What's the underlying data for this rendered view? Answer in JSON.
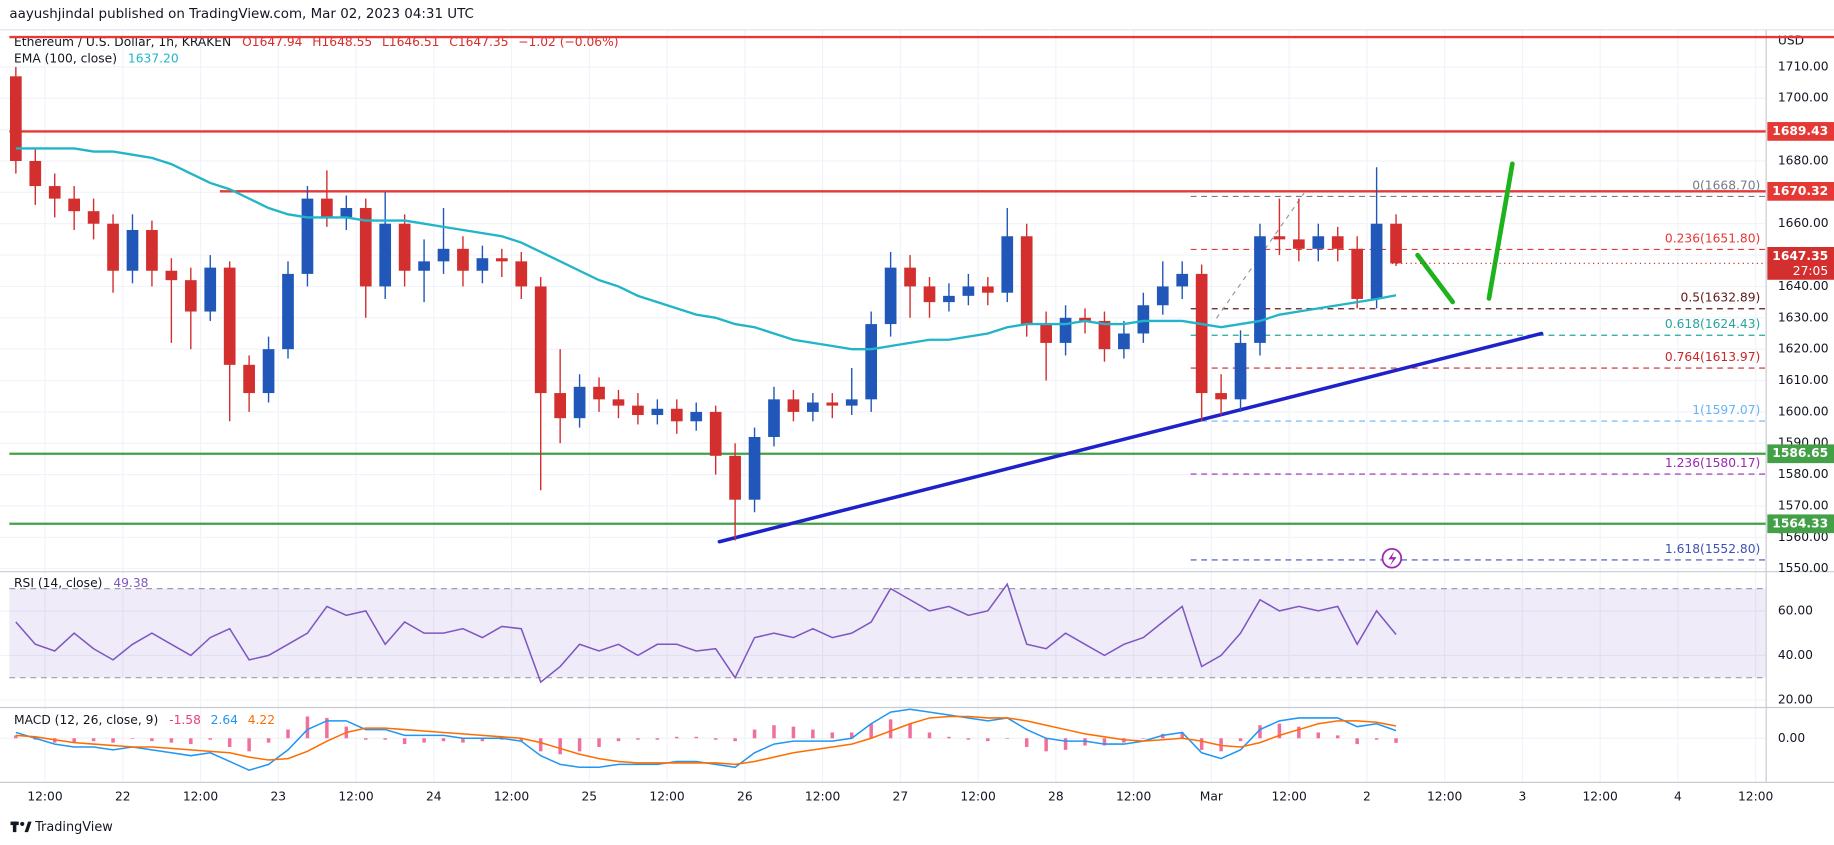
{
  "header": {
    "publisher": "aayushjindal published on TradingView.com, Mar 02, 2023 04:31 UTC",
    "symbol": "Ethereum / U.S. Dollar, 1h, KRAKEN",
    "ohlc": [
      "O1647.94",
      "H1648.55",
      "L1646.51",
      "C1647.35",
      "−1.02 (−0.06%)"
    ],
    "brand": "TradingView"
  },
  "chart_data": [
    {
      "type": "candlestick",
      "currency": "USD",
      "x_labels": [
        "12:00",
        "22",
        "12:00",
        "23",
        "12:00",
        "24",
        "12:00",
        "25",
        "12:00",
        "26",
        "12:00",
        "27",
        "12:00",
        "28",
        "12:00",
        "Mar",
        "12:00",
        "2",
        "12:00",
        "3",
        "12:00",
        "4",
        "12:00"
      ],
      "open": [
        1707,
        1680,
        1672,
        1668,
        1664,
        1660,
        1645,
        1658,
        1645,
        1642,
        1632,
        1646,
        1615,
        1606,
        1620,
        1644,
        1668,
        1662,
        1665,
        1640,
        1660,
        1645,
        1648,
        1652,
        1645,
        1649,
        1648,
        1640,
        1606,
        1598,
        1608,
        1604,
        1602,
        1599,
        1601,
        1597,
        1600,
        1586,
        1572,
        1592,
        1604,
        1600,
        1603,
        1602,
        1604,
        1628,
        1646,
        1640,
        1635,
        1637,
        1640,
        1638,
        1656,
        1628,
        1622,
        1630,
        1629,
        1620,
        1625,
        1634,
        1640,
        1644,
        1606,
        1604,
        1622,
        1656,
        1655,
        1652,
        1656,
        1652,
        1636,
        1660
      ],
      "high": [
        1710,
        1684,
        1676,
        1672,
        1668,
        1663,
        1663,
        1661,
        1649,
        1646,
        1650,
        1648,
        1618,
        1624,
        1648,
        1672,
        1677,
        1669,
        1668,
        1670,
        1663,
        1655,
        1665,
        1656,
        1653,
        1652,
        1651,
        1643,
        1620,
        1612,
        1611,
        1607,
        1606,
        1604,
        1604,
        1603,
        1602,
        1590,
        1595,
        1608,
        1607,
        1606,
        1606,
        1614,
        1632,
        1651,
        1650,
        1643,
        1641,
        1644,
        1643,
        1665,
        1660,
        1632,
        1634,
        1633,
        1632,
        1629,
        1638,
        1648,
        1648,
        1647,
        1612,
        1626,
        1660,
        1668,
        1668,
        1660,
        1659,
        1656,
        1678,
        1663
      ],
      "low": [
        1676,
        1666,
        1662,
        1658,
        1655,
        1638,
        1641,
        1640,
        1622,
        1620,
        1629,
        1597,
        1600,
        1603,
        1617,
        1640,
        1659,
        1658,
        1630,
        1636,
        1640,
        1635,
        1644,
        1640,
        1641,
        1643,
        1636,
        1575,
        1590,
        1595,
        1600,
        1598,
        1596,
        1596,
        1593,
        1594,
        1580,
        1559,
        1568,
        1589,
        1597,
        1597,
        1598,
        1599,
        1600,
        1624,
        1630,
        1630,
        1632,
        1634,
        1634,
        1635,
        1624,
        1610,
        1618,
        1625,
        1616,
        1617,
        1622,
        1631,
        1636,
        1597,
        1599,
        1600,
        1618,
        1650,
        1648,
        1648,
        1648,
        1633,
        1633,
        1646.51
      ],
      "close": [
        1680,
        1672,
        1668,
        1664,
        1660,
        1645,
        1658,
        1645,
        1642,
        1632,
        1646,
        1615,
        1606,
        1620,
        1644,
        1668,
        1662,
        1665,
        1640,
        1660,
        1645,
        1648,
        1652,
        1645,
        1649,
        1648,
        1640,
        1606,
        1598,
        1608,
        1604,
        1602,
        1599,
        1601,
        1597,
        1600,
        1586,
        1572,
        1592,
        1604,
        1600,
        1603,
        1602,
        1604,
        1628,
        1646,
        1640,
        1635,
        1637,
        1640,
        1638,
        1656,
        1628,
        1622,
        1630,
        1629,
        1620,
        1625,
        1634,
        1640,
        1644,
        1606,
        1604,
        1622,
        1656,
        1655,
        1652,
        1656,
        1652,
        1636,
        1660,
        1647.35
      ],
      "up_color": "#2157b8",
      "down_color": "#d32f2f",
      "countdown": "27:05",
      "ema": {
        "name": "EMA (100, close)",
        "color": "#22b5c8",
        "value_label": "1637.20",
        "values": [
          1684,
          1684,
          1684,
          1684,
          1683,
          1683,
          1682,
          1681,
          1679,
          1676,
          1673,
          1671,
          1668,
          1665,
          1663,
          1662,
          1662,
          1662,
          1661,
          1661,
          1661,
          1660,
          1659,
          1658,
          1657,
          1656,
          1654,
          1651,
          1648,
          1645,
          1642,
          1640,
          1637,
          1635,
          1633,
          1631,
          1630,
          1628,
          1627,
          1625,
          1623,
          1622,
          1621,
          1620,
          1620,
          1621,
          1622,
          1623,
          1623,
          1624,
          1625,
          1627,
          1628,
          1628,
          1628,
          1629,
          1628,
          1628,
          1629,
          1629,
          1629,
          1628,
          1627,
          1628,
          1629,
          1631,
          1632,
          1633,
          1634,
          1635,
          1636,
          1637.2
        ]
      },
      "unlabeled_levels": [
        {
          "value": 1719.5,
          "color": "#e53935"
        }
      ],
      "levels": [
        {
          "value": 1689.43,
          "color": "#e53935"
        },
        {
          "value": 1670.32,
          "color": "#e53935"
        },
        {
          "value": 1586.65,
          "color": "#43a047"
        },
        {
          "value": 1564.33,
          "color": "#43a047"
        }
      ],
      "fib": [
        {
          "value": 1668.7,
          "label": "0(1668.70)",
          "color": "#787b86"
        },
        {
          "value": 1651.8,
          "label": "0.236(1651.80)",
          "color": "#e53935"
        },
        {
          "value": 1632.89,
          "label": "0.5(1632.89)",
          "color": "#5d1a1a"
        },
        {
          "value": 1624.43,
          "label": "0.618(1624.43)",
          "color": "#26a69a"
        },
        {
          "value": 1613.97,
          "label": "0.764(1613.97)",
          "color": "#c62828"
        },
        {
          "value": 1597.07,
          "label": "1(1597.07)",
          "color": "#64b5f6"
        },
        {
          "value": 1580.17,
          "label": "1.236(1580.17)",
          "color": "#9c27b0"
        },
        {
          "value": 1552.8,
          "label": "1.618(1552.80)",
          "color": "#3f51b5"
        }
      ],
      "trendline": {
        "color": "#1e22c8",
        "values": [
          1558.6,
          1625
        ]
      },
      "ylim": [
        1549.6,
        1722
      ],
      "yticks": [
        {
          "value": 1550,
          "label": "1550.00"
        },
        {
          "value": 1560,
          "label": "1560.00"
        },
        {
          "value": 1570,
          "label": "1570.00"
        },
        {
          "value": 1580,
          "label": "1580.00"
        },
        {
          "value": 1590,
          "label": "1590.00"
        },
        {
          "value": 1600,
          "label": "1600.00"
        },
        {
          "value": 1610,
          "label": "1610.00"
        },
        {
          "value": 1620,
          "label": "1620.00"
        },
        {
          "value": 1630,
          "label": "1630.00"
        },
        {
          "value": 1640,
          "label": "1640.00"
        },
        {
          "value": 1650,
          "label": "1650.00"
        },
        {
          "value": 1660,
          "label": "1660.00"
        },
        {
          "value": 1670,
          "label": "1670.00"
        },
        {
          "value": 1680,
          "label": "1680.00"
        },
        {
          "value": 1690,
          "label": "1690.00"
        },
        {
          "value": 1700,
          "label": "1700.00"
        },
        {
          "value": 1710,
          "label": "1710.00"
        }
      ],
      "grid": true
    },
    {
      "type": "line",
      "series": [
        {
          "name": "RSI (14, close)",
          "color": "#7e57c2",
          "values": [
            55,
            45,
            42,
            50,
            43,
            38,
            45,
            50,
            45,
            40,
            48,
            52,
            38,
            40,
            45,
            50,
            62,
            58,
            60,
            45,
            55,
            50,
            50,
            52,
            48,
            53,
            52,
            28,
            35,
            45,
            42,
            45,
            40,
            45,
            45,
            42,
            43,
            30,
            48,
            50,
            48,
            52,
            48,
            50,
            55,
            70,
            65,
            60,
            62,
            58,
            60,
            72,
            45,
            43,
            50,
            45,
            40,
            45,
            48,
            55,
            62,
            35,
            40,
            50,
            65,
            60,
            62,
            60,
            62,
            45,
            60,
            49.38
          ]
        }
      ],
      "band": [
        30,
        70
      ],
      "band_color": "#7e57c2",
      "ylim": [
        17.4,
        76.8
      ],
      "yticks": [
        {
          "value": 20,
          "label": "20.00"
        },
        {
          "value": 40,
          "label": "40.00"
        },
        {
          "value": 60,
          "label": "60.00"
        }
      ]
    },
    {
      "type": "macd",
      "title": "MACD (12, 26, close, 9)",
      "histogram": {
        "color": "#ec407a",
        "values": [
          1,
          -0.5,
          -1.5,
          -1.5,
          -1,
          -1.5,
          0,
          -1,
          -1.5,
          -2,
          -0.5,
          -3,
          -4.5,
          -1.5,
          3,
          7.5,
          7,
          4,
          -0.5,
          -0.5,
          -2,
          -1.5,
          -1,
          -1.5,
          -1,
          -0.5,
          -1,
          -4.5,
          -5.5,
          -4.5,
          -3,
          -1,
          -0.5,
          -0.5,
          0.5,
          0.5,
          -0.5,
          -1,
          3,
          4.5,
          4,
          3,
          2,
          2,
          5,
          6.5,
          5,
          2,
          0.5,
          -0.5,
          -1,
          0,
          -3,
          -4.5,
          -4,
          -2.5,
          -2.5,
          -1.5,
          0,
          1.5,
          2,
          -4,
          -4.5,
          -1,
          4.5,
          5,
          4,
          2,
          1,
          -2,
          -0.5,
          -1.58
        ]
      },
      "series": [
        {
          "color": "#2196f3",
          "values": [
            2,
            0,
            -2,
            -3,
            -3,
            -4,
            -3,
            -4,
            -5,
            -6,
            -5,
            -8,
            -11,
            -9,
            -4,
            3,
            6,
            6,
            3,
            3,
            1,
            1,
            1,
            0,
            0,
            0,
            -1,
            -6,
            -9,
            -10,
            -10,
            -9,
            -9,
            -9,
            -8,
            -8,
            -9,
            -10,
            -5,
            -2,
            -1,
            -1,
            -1,
            0,
            5,
            9,
            10,
            9,
            8,
            7,
            6,
            7,
            3,
            0,
            -1,
            -1,
            -2,
            -2,
            -1,
            1,
            2,
            -5,
            -7,
            -4,
            3,
            6,
            7,
            7,
            7,
            4,
            5,
            2.64
          ]
        },
        {
          "color": "#ff6d00",
          "values": [
            1,
            0.5,
            -0.5,
            -1.5,
            -2,
            -2.5,
            -3,
            -3,
            -3.5,
            -4,
            -4.5,
            -5,
            -6.5,
            -7.5,
            -7,
            -4.5,
            -1,
            2,
            3.5,
            3.5,
            3,
            2.5,
            2,
            1.5,
            1,
            0.5,
            0,
            -1.5,
            -3.5,
            -5.5,
            -7,
            -8,
            -8.5,
            -8.5,
            -8.5,
            -8.5,
            -8.5,
            -9,
            -8,
            -6.5,
            -5,
            -4,
            -3,
            -2,
            0,
            2.5,
            5,
            7,
            7.5,
            7.5,
            7,
            7,
            6,
            4.5,
            3,
            1.5,
            0.5,
            -0.5,
            -1,
            -0.5,
            0,
            -1,
            -2.5,
            -3,
            -1.5,
            1,
            3,
            5,
            6,
            6,
            5.5,
            4.22
          ]
        }
      ],
      "ylim": [
        -15,
        10
      ],
      "yticks": [
        {
          "value": 0,
          "label": "0.00"
        }
      ]
    }
  ]
}
